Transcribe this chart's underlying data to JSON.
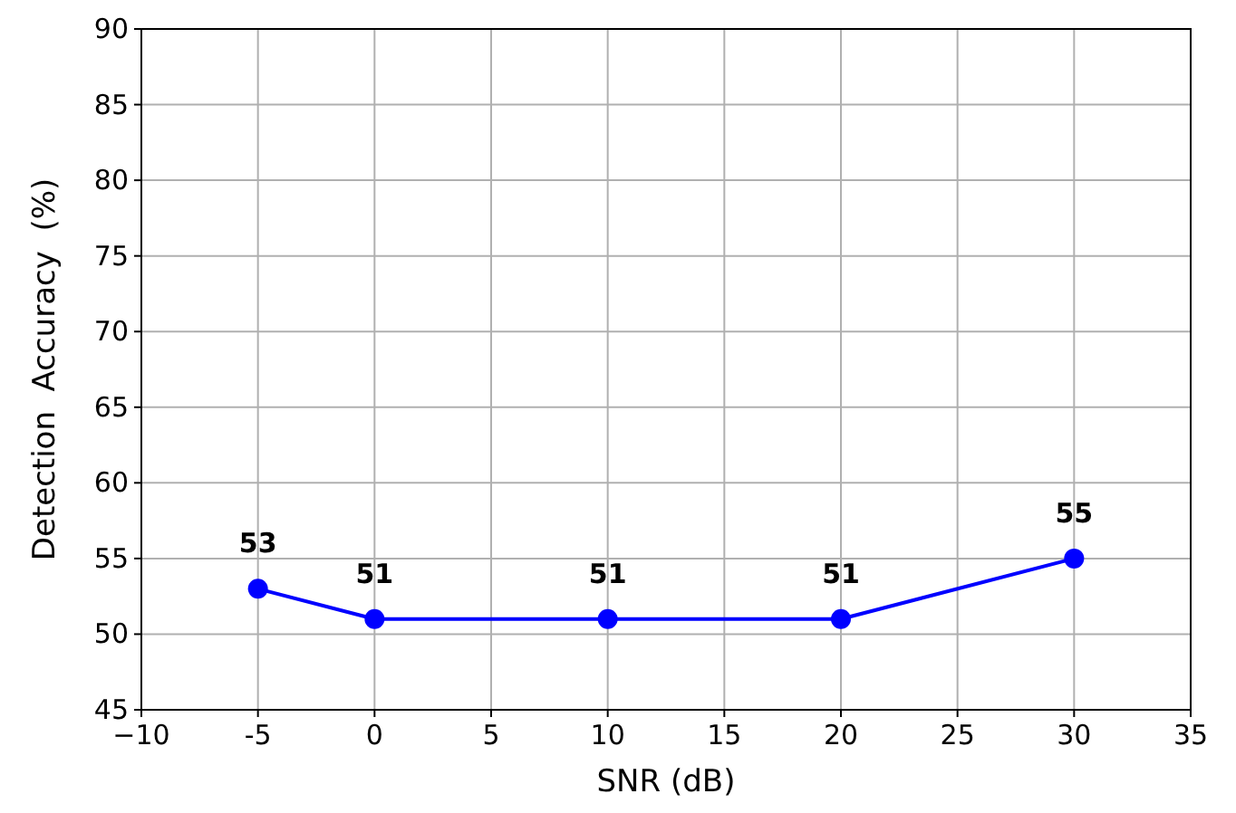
{
  "chart_data": {
    "type": "line",
    "xlabel": "SNR (dB)",
    "ylabel": "Detection  Accuracy  (%)",
    "x": [
      -5,
      0,
      10,
      20,
      30
    ],
    "series": [
      {
        "color": "#0000ff",
        "values": [
          53,
          51,
          51,
          51,
          55
        ]
      }
    ],
    "xlim": [
      -10,
      35
    ],
    "xticks": [
      {
        "value": -10,
        "label": "−10"
      },
      -5,
      0,
      5,
      10,
      15,
      20,
      25,
      30,
      35
    ],
    "ylim": [
      45,
      90
    ],
    "yticks": [
      45,
      50,
      55,
      60,
      65,
      70,
      75,
      80,
      85,
      90
    ],
    "grid": true,
    "marker": "circle",
    "line_style": "solid",
    "data_labels": true
  }
}
